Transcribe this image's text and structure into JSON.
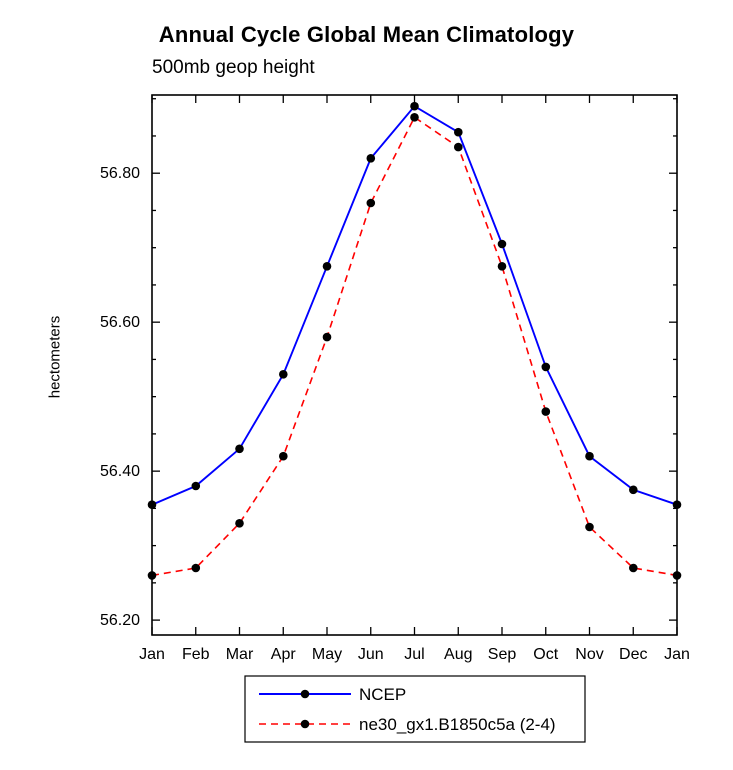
{
  "chart_data": {
    "type": "line",
    "title": "Annual Cycle Global Mean Climatology",
    "subtitle": "500mb geop height",
    "ylabel": "hectometers",
    "xlabel": "",
    "categories": [
      "Jan",
      "Feb",
      "Mar",
      "Apr",
      "May",
      "Jun",
      "Jul",
      "Aug",
      "Sep",
      "Oct",
      "Nov",
      "Dec",
      "Jan"
    ],
    "ylim": [
      56.18,
      56.905
    ],
    "yticks_major": [
      56.2,
      56.4,
      56.6,
      56.8
    ],
    "ytick_minor_step": 0.05,
    "grid": false,
    "legend_position": "bottom-center",
    "series": [
      {
        "name": "NCEP",
        "color": "#0000ff",
        "style": "solid",
        "marker": "circle",
        "marker_color": "#000000",
        "values": [
          56.355,
          56.38,
          56.43,
          56.53,
          56.675,
          56.82,
          56.89,
          56.855,
          56.705,
          56.54,
          56.42,
          56.375,
          56.355
        ]
      },
      {
        "name": "ne30_gx1.B1850c5a (2-4)",
        "color": "#ff0000",
        "style": "dashed",
        "marker": "circle",
        "marker_color": "#000000",
        "values": [
          56.26,
          56.27,
          56.33,
          56.42,
          56.58,
          56.76,
          56.875,
          56.835,
          56.675,
          56.48,
          56.325,
          56.27,
          56.26
        ]
      }
    ],
    "axis_color": "#000000",
    "background_color": "#ffffff"
  }
}
